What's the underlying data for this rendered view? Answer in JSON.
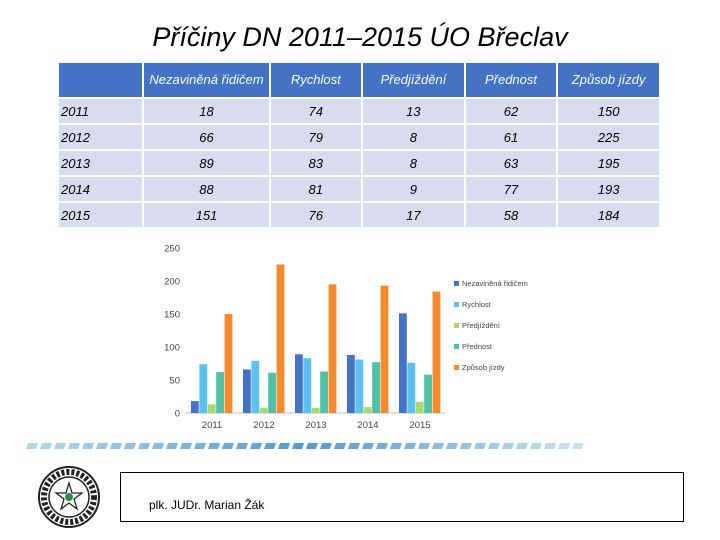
{
  "title": "Příčiny DN  2011–2015 ÚO Břeclav",
  "table": {
    "headers": [
      "",
      "Nezaviněná řidičem",
      "Rychlost",
      "Předjíždění",
      "Přednost",
      "Způsob jízdy"
    ],
    "rows": [
      [
        "2011",
        "18",
        "74",
        "13",
        "62",
        "150"
      ],
      [
        "2012",
        "66",
        "79",
        "8",
        "61",
        "225"
      ],
      [
        "2013",
        "89",
        "83",
        "8",
        "63",
        "195"
      ],
      [
        "2014",
        "88",
        "81",
        "9",
        "77",
        "193"
      ],
      [
        "2015",
        "151",
        "76",
        "17",
        "58",
        "184"
      ]
    ]
  },
  "chart_data": {
    "type": "bar",
    "categories": [
      "2011",
      "2012",
      "2013",
      "2014",
      "2015"
    ],
    "series": [
      {
        "name": "Nezaviněná řidičem",
        "color": "#4472c4",
        "values": [
          18,
          66,
          89,
          88,
          151
        ]
      },
      {
        "name": "Rychlost",
        "color": "#5bc0f2",
        "values": [
          74,
          79,
          83,
          81,
          76
        ]
      },
      {
        "name": "Předjíždění",
        "color": "#a9d86e",
        "values": [
          13,
          8,
          8,
          9,
          17
        ]
      },
      {
        "name": "Přednost",
        "color": "#4fc1a6",
        "values": [
          62,
          61,
          63,
          77,
          58
        ]
      },
      {
        "name": "Způsob jízdy",
        "color": "#f58a2a",
        "values": [
          150,
          225,
          195,
          193,
          184
        ]
      }
    ],
    "ylim": [
      0,
      250
    ],
    "yticks": [
      "0",
      "50",
      "100",
      "150",
      "200",
      "250"
    ],
    "grid": false,
    "legend": "right"
  },
  "footer": {
    "signature": "plk. JUDr. Marian Žák",
    "badge_text": "POLICIE ČESKÉ REPUBLIKY"
  }
}
